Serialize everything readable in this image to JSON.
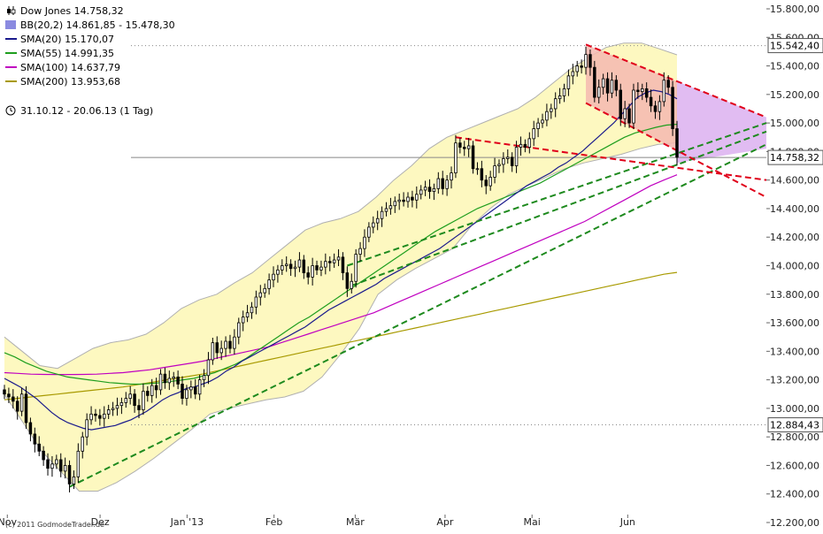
{
  "chart_data": {
    "type": "candlestick",
    "title": "Dow Jones 14.758,32",
    "period": "31.10.12 - 20.06.13 (1 Tag)",
    "copyright": "(c) 2011 GodmodeTrader.de",
    "ylim": [
      12200,
      15800
    ],
    "yticks": [
      {
        "value": 12200,
        "label": "12.200,00"
      },
      {
        "value": 12400,
        "label": "12.400,00"
      },
      {
        "value": 12600,
        "label": "12.600,00"
      },
      {
        "value": 12800,
        "label": "12.800,00"
      },
      {
        "value": 13000,
        "label": "13.000,00"
      },
      {
        "value": 13200,
        "label": "13.200,00"
      },
      {
        "value": 13400,
        "label": "13.400,00"
      },
      {
        "value": 13600,
        "label": "13.600,00"
      },
      {
        "value": 13800,
        "label": "13.800,00"
      },
      {
        "value": 14000,
        "label": "14.000,00"
      },
      {
        "value": 14200,
        "label": "14.200,00"
      },
      {
        "value": 14400,
        "label": "14.400,00"
      },
      {
        "value": 14600,
        "label": "14.600,00"
      },
      {
        "value": 14800,
        "label": "14.800,00"
      },
      {
        "value": 15000,
        "label": "15.000,00"
      },
      {
        "value": 15200,
        "label": "15.200,00"
      },
      {
        "value": 15400,
        "label": "15.400,00"
      },
      {
        "value": 15600,
        "label": "15.600,00"
      },
      {
        "value": 15800,
        "label": "15.800,00"
      }
    ],
    "xlabels": [
      {
        "label": "Nov",
        "date": "2012-11-01"
      },
      {
        "label": "Dez",
        "date": "2012-12-03"
      },
      {
        "label": "Jan '13",
        "date": "2013-01-02"
      },
      {
        "label": "Feb",
        "date": "2013-02-01"
      },
      {
        "label": "Mär",
        "date": "2013-03-01"
      },
      {
        "label": "Apr",
        "date": "2013-04-01"
      },
      {
        "label": "Mai",
        "date": "2013-05-01"
      },
      {
        "label": "Jun",
        "date": "2013-06-03"
      }
    ],
    "marked_levels": [
      {
        "value": 15542.4,
        "label": "15.542,40",
        "style": "dotted"
      },
      {
        "value": 14758.32,
        "label": "14.758,32",
        "style": "solid"
      },
      {
        "value": 12884.43,
        "label": "12.884,43",
        "style": "dotted"
      }
    ],
    "legend": [
      {
        "label": "Dow Jones 14.758,32",
        "color": "#000000",
        "kind": "candle"
      },
      {
        "label": "BB(20,2) 14.861,85 - 15.478,30",
        "color": "#8a8ae0",
        "kind": "box"
      },
      {
        "label": "SMA(20) 15.170,07",
        "color": "#1a1a8c",
        "kind": "line"
      },
      {
        "label": "SMA(55) 14.991,35",
        "color": "#1e9e1e",
        "kind": "line"
      },
      {
        "label": "SMA(100) 14.637,79",
        "color": "#c000c0",
        "kind": "line"
      },
      {
        "label": "SMA(200) 13.953,68",
        "color": "#a89a00",
        "kind": "line"
      }
    ],
    "colors": {
      "bb_fill": "#fdf8c0",
      "bb_border": "#b0b0b0",
      "sma20": "#1a1a8c",
      "sma55": "#1e9e1e",
      "sma100": "#c000c0",
      "sma200": "#a89a00",
      "trend_green": "#1e8a1e",
      "trend_red": "#e0001a",
      "flag_fill": "#f4b8b0",
      "channel_fill": "#dcb0f0"
    },
    "close": [
      13100,
      13080,
      13050,
      12980,
      13100,
      12900,
      12820,
      12750,
      12700,
      12640,
      12580,
      12610,
      12640,
      12560,
      12600,
      12470,
      12520,
      12700,
      12800,
      12920,
      12960,
      12950,
      12930,
      12960,
      12990,
      13000,
      13020,
      13040,
      13070,
      13100,
      13020,
      12990,
      13120,
      13090,
      13160,
      13130,
      13240,
      13180,
      13210,
      13220,
      13170,
      13070,
      13130,
      13150,
      13100,
      13200,
      13230,
      13340,
      13460,
      13390,
      13420,
      13470,
      13420,
      13500,
      13600,
      13640,
      13670,
      13710,
      13780,
      13810,
      13840,
      13900,
      13940,
      13970,
      14000,
      14010,
      13980,
      13990,
      14040,
      13950,
      13920,
      14000,
      13970,
      13990,
      14030,
      14020,
      14040,
      14060,
      13950,
      13840,
      13890,
      14080,
      14120,
      14200,
      14270,
      14300,
      14330,
      14380,
      14400,
      14420,
      14450,
      14460,
      14450,
      14480,
      14460,
      14500,
      14530,
      14550,
      14520,
      14540,
      14610,
      14540,
      14600,
      14650,
      14860,
      14830,
      14820,
      14840,
      14680,
      14680,
      14600,
      14560,
      14620,
      14700,
      14710,
      14750,
      14760,
      14700,
      14830,
      14850,
      14830,
      14890,
      14960,
      15000,
      15020,
      15080,
      15100,
      15170,
      15190,
      15240,
      15330,
      15360,
      15400,
      15390,
      15480,
      15390,
      15180,
      15250,
      15310,
      15210,
      15300,
      15230,
      15030,
      15100,
      15000,
      15230,
      15220,
      15240,
      15180,
      15120,
      15080,
      15150,
      15300,
      15250,
      14960,
      14760
    ],
    "sma20": [
      13210,
      13180,
      13150,
      13110,
      13070,
      13020,
      12970,
      12930,
      12900,
      12880,
      12860,
      12850,
      12860,
      12870,
      12880,
      12900,
      12920,
      12950,
      12980,
      13020,
      13060,
      13090,
      13110,
      13140,
      13150,
      13170,
      13190,
      13220,
      13260,
      13290,
      13330,
      13360,
      13390,
      13420,
      13450,
      13480,
      13510,
      13540,
      13570,
      13610,
      13650,
      13690,
      13720,
      13750,
      13780,
      13810,
      13840,
      13870,
      13910,
      13940,
      13970,
      14000,
      14030,
      14060,
      14090,
      14120,
      14160,
      14200,
      14240,
      14280,
      14320,
      14360,
      14400,
      14440,
      14480,
      14520,
      14560,
      14590,
      14620,
      14650,
      14690,
      14720,
      14760,
      14800,
      14850,
      14900,
      14950,
      15000,
      15060,
      15120,
      15180,
      15210,
      15230,
      15220,
      15200,
      15170
    ],
    "sma55": [
      13390,
      13360,
      13320,
      13290,
      13260,
      13240,
      13220,
      13210,
      13200,
      13190,
      13180,
      13175,
      13170,
      13170,
      13175,
      13180,
      13190,
      13200,
      13210,
      13230,
      13250,
      13280,
      13310,
      13350,
      13400,
      13450,
      13500,
      13550,
      13600,
      13640,
      13690,
      13740,
      13790,
      13840,
      13890,
      13940,
      13990,
      14040,
      14090,
      14140,
      14190,
      14240,
      14280,
      14320,
      14360,
      14400,
      14430,
      14460,
      14490,
      14520,
      14550,
      14580,
      14620,
      14660,
      14700,
      14740,
      14780,
      14820,
      14860,
      14900,
      14930,
      14950,
      14970,
      14985,
      14991
    ],
    "sma100": [
      13250,
      13245,
      13240,
      13238,
      13237,
      13237,
      13238,
      13240,
      13245,
      13250,
      13260,
      13270,
      13285,
      13300,
      13315,
      13330,
      13350,
      13370,
      13390,
      13410,
      13430,
      13460,
      13490,
      13520,
      13550,
      13580,
      13610,
      13640,
      13670,
      13710,
      13750,
      13790,
      13830,
      13870,
      13910,
      13950,
      13990,
      14030,
      14070,
      14110,
      14150,
      14190,
      14230,
      14270,
      14310,
      14360,
      14410,
      14460,
      14510,
      14560,
      14600,
      14637
    ],
    "sma200": [
      13060,
      13070,
      13080,
      13090,
      13100,
      13110,
      13120,
      13130,
      13140,
      13150,
      13165,
      13180,
      13195,
      13210,
      13225,
      13240,
      13260,
      13280,
      13300,
      13320,
      13340,
      13360,
      13380,
      13400,
      13420,
      13440,
      13460,
      13480,
      13500,
      13520,
      13540,
      13560,
      13580,
      13600,
      13620,
      13640,
      13660,
      13680,
      13700,
      13720,
      13740,
      13760,
      13780,
      13800,
      13820,
      13840,
      13860,
      13880,
      13900,
      13920,
      13940,
      13953
    ],
    "bb_upper": [
      13500,
      13400,
      13300,
      13280,
      13350,
      13420,
      13460,
      13480,
      13520,
      13600,
      13700,
      13760,
      13800,
      13880,
      13950,
      14050,
      14150,
      14250,
      14300,
      14330,
      14380,
      14480,
      14600,
      14700,
      14820,
      14900,
      14950,
      15000,
      15050,
      15100,
      15180,
      15280,
      15380,
      15460,
      15530,
      15560,
      15560,
      15520,
      15478
    ],
    "bb_lower": [
      13100,
      12900,
      12700,
      12560,
      12420,
      12420,
      12480,
      12560,
      12650,
      12750,
      12850,
      12960,
      13000,
      13030,
      13060,
      13080,
      13120,
      13220,
      13380,
      13560,
      13800,
      13900,
      13980,
      14050,
      14120,
      14280,
      14400,
      14500,
      14560,
      14620,
      14680,
      14720,
      14750,
      14780,
      14820,
      14850,
      14861
    ]
  }
}
